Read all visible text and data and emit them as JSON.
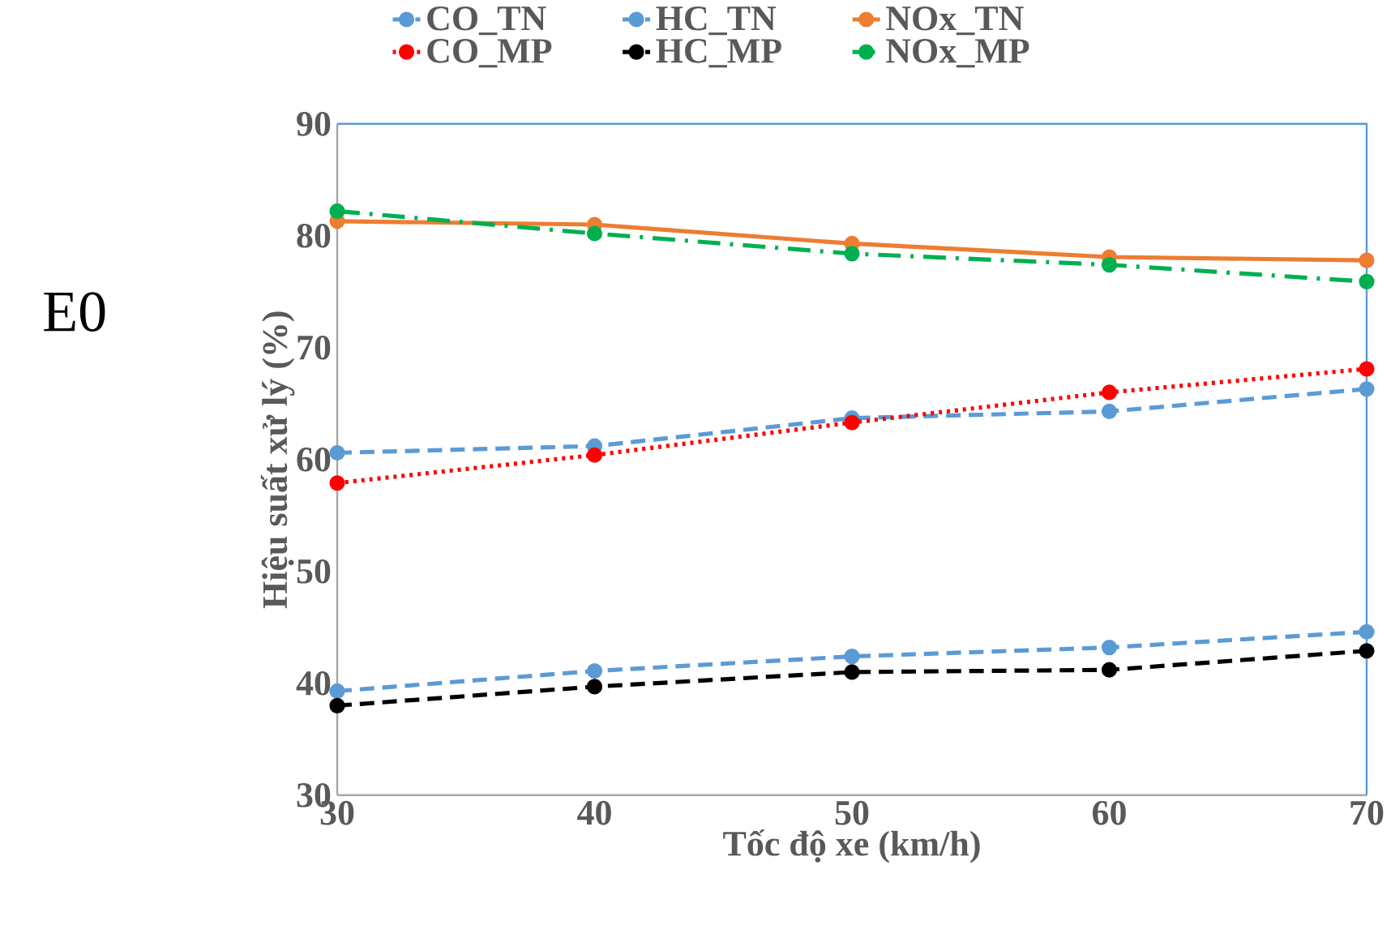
{
  "chart_data": {
    "type": "line",
    "xlabel": "Tốc độ xe (km/h)",
    "ylabel": "Hiệu suất xử lý (%)",
    "annotations": [
      "E0"
    ],
    "x": [
      30,
      40,
      50,
      60,
      70
    ],
    "series": [
      {
        "name": "CO_TN",
        "color": "#5b9bd5",
        "line_style": "dashed",
        "values": [
          60.6,
          61.2,
          63.7,
          64.3,
          66.3
        ]
      },
      {
        "name": "HC_TN",
        "color": "#5b9bd5",
        "line_style": "dashed",
        "values": [
          39.3,
          41.1,
          42.4,
          43.2,
          44.6
        ]
      },
      {
        "name": "NOx_TN",
        "color": "#ed7d31",
        "line_style": "solid",
        "values": [
          81.3,
          81.0,
          79.3,
          78.1,
          77.8
        ]
      },
      {
        "name": "CO_MP",
        "color": "#ff0000",
        "line_style": "dotted",
        "values": [
          57.9,
          60.4,
          63.3,
          66.0,
          68.1
        ]
      },
      {
        "name": "HC_MP",
        "color": "#000000",
        "line_style": "dashed",
        "values": [
          38.0,
          39.7,
          41.0,
          41.2,
          42.9
        ]
      },
      {
        "name": "NOx_MP",
        "color": "#00b050",
        "line_style": "dashdot",
        "values": [
          82.2,
          80.2,
          78.4,
          77.4,
          75.9
        ]
      }
    ],
    "xlim": [
      30,
      70
    ],
    "ylim": [
      30,
      90
    ],
    "xticks": [
      30,
      40,
      50,
      60,
      70
    ],
    "yticks": [
      30,
      40,
      50,
      60,
      70,
      80,
      90
    ],
    "grid": false,
    "legend": "top",
    "marker": "circle"
  }
}
